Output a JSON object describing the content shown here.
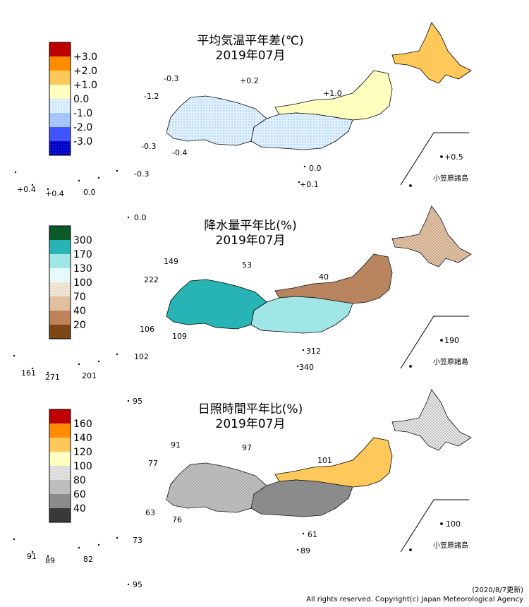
{
  "panels": [
    {
      "title": "平均気温平年差(℃)",
      "subtitle": "2019年07月",
      "legend": [
        "+3.0",
        "+2.0",
        "+1.0",
        "0.0",
        "-1.0",
        "-2.0",
        "-3.0"
      ],
      "legend_colors": [
        "#c00000",
        "#ff8c00",
        "#ffc85a",
        "#ffffc0",
        "#dff0ff",
        "#a8c8ff",
        "#3c50ff",
        "#0000c8"
      ],
      "labels": {
        "hokuriku": "+1.0",
        "north_w": "-0.3",
        "north_m": "+0.2",
        "west": "-1.2",
        "kyushu_w": "-0.3",
        "kyushu_e": "-0.4",
        "izu1": "0.0",
        "izu2": "+0.1",
        "ogasawara": "+0.5",
        "okinawa_1": "+0.4",
        "okinawa_2": "+0.4",
        "okinawa_3": "0.0",
        "okinawa_4": "-0.3",
        "daito": "0.0"
      },
      "region_fills": {
        "hokkaido": "#ffc85a",
        "tohoku": "#ffffc0",
        "east": "#dff0ff",
        "west": "#dff0ff"
      }
    },
    {
      "title": "降水量平年比(%)",
      "subtitle": "2019年07月",
      "legend": [
        "300",
        "170",
        "130",
        "100",
        "70",
        "40",
        "20"
      ],
      "legend_colors": [
        "#0a5a28",
        "#28b4b4",
        "#a0e6e6",
        "#e6fafa",
        "#fff3e0",
        "#f0c8a0",
        "#c88250",
        "#783c00"
      ],
      "labels": {
        "noto": "40",
        "north_w": "149",
        "north_m": "53",
        "west": "222",
        "kyushu_w": "106",
        "kyushu_e": "109",
        "izu1": "312",
        "izu2": "340",
        "ogasawara": "190",
        "okinawa_1": "161",
        "okinawa_2": "271",
        "okinawa_3": "201",
        "okinawa_4": "102",
        "daito": "95"
      },
      "region_fills": {
        "hokkaido": "#f0c8a0",
        "tohoku": "#c88250",
        "east": "#a0e6e6",
        "west": "#28b4b4"
      }
    },
    {
      "title": "日照時間平年比(%)",
      "subtitle": "2019年07月",
      "legend": [
        "160",
        "140",
        "120",
        "100",
        "80",
        "60",
        "40"
      ],
      "legend_colors": [
        "#c00000",
        "#ff8c00",
        "#ffc85a",
        "#ffffc0",
        "#f0f0f0",
        "#c8c8c8",
        "#8c8c8c",
        "#282828"
      ],
      "labels": {
        "hokuriku": "101",
        "north_w": "91",
        "north_m": "97",
        "west": "77",
        "kyushu_w": "63",
        "kyushu_e": "76",
        "izu1": "61",
        "izu2": "89",
        "ogasawara": "100",
        "okinawa_1": "91",
        "okinawa_2": "89",
        "okinawa_3": "82",
        "okinawa_4": "73",
        "daito": "95"
      },
      "region_fills": {
        "hokkaido": "#f0f0f0",
        "tohoku": "#ffc85a",
        "east": "#8c8c8c",
        "west": "#c8c8c8"
      }
    }
  ],
  "ogasawara_name": "小笠原諸島",
  "footer": {
    "date": "(2020/8/7更新)",
    "copyright": "All rights reserved. Copyright(c) Japan Meteorological Agency"
  }
}
